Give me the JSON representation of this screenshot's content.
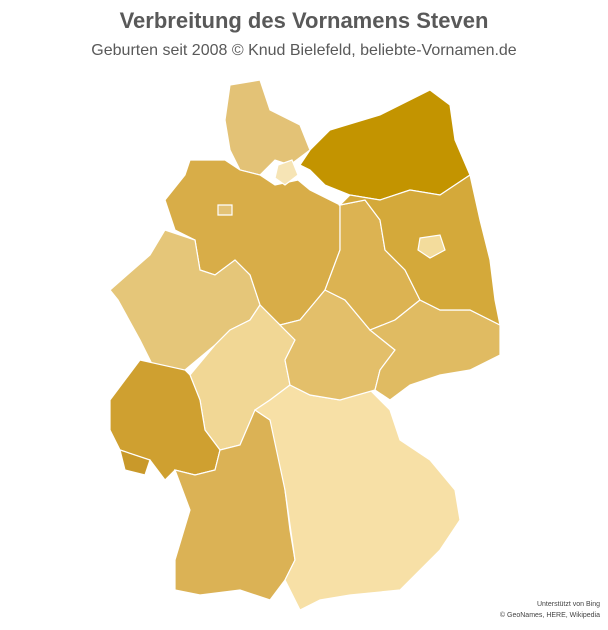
{
  "header": {
    "title": "Verbreitung des Vornamens Steven",
    "subtitle": "Geburten seit 2008  © Knud Bielefeld, beliebte-Vornamen.de"
  },
  "attribution": {
    "line1": "Unterstützt von Bing",
    "line2": "© GeoNames, HERE, Wikipedia"
  }
}
